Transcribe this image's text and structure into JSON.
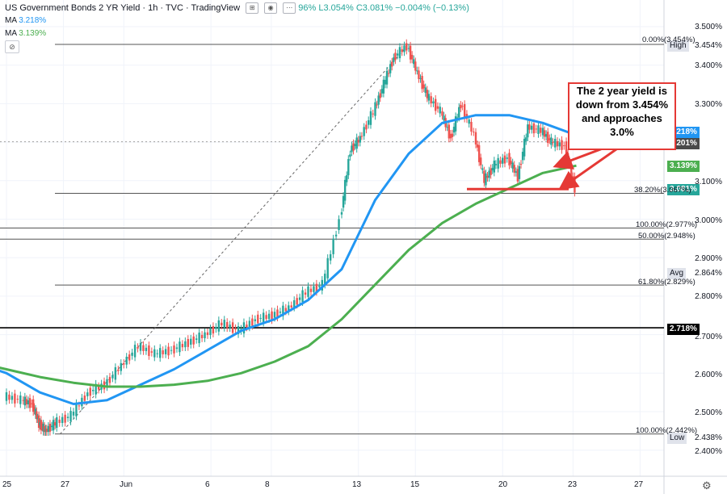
{
  "header": {
    "title": "US Government Bonds 2 YR Yield · 1h · TVC · TradingView",
    "ohlc_text": "96% L3.054% C3.081% −0.004% (−0.13%)",
    "ma1_label": "MA",
    "ma1_value": "3.218%",
    "ma2_label": "MA",
    "ma2_value": "3.139%"
  },
  "colors": {
    "ma_fast": "#2196f3",
    "ma_slow": "#4caf50",
    "up": "#26a69a",
    "down": "#ef5350",
    "annotation": "#e53935"
  },
  "callout": {
    "line1": "The 2 year yield is",
    "line2": "down from 3.454%",
    "line3": "and approaches",
    "line4": "3.0%"
  },
  "yaxis": {
    "ticks": [
      "3.500%",
      "3.400%",
      "3.300%",
      "3.100%",
      "3.000%",
      "2.900%",
      "2.800%",
      "2.700%",
      "2.600%",
      "2.500%",
      "2.400%"
    ]
  },
  "xaxis": {
    "ticks": [
      "25",
      "27",
      "Jun",
      "6",
      "8",
      "13",
      "15",
      "20",
      "23",
      "27"
    ]
  },
  "price_tags": {
    "ma_fast": "3.218%",
    "line_3201": "3.201%",
    "ma_slow": "3.139%",
    "last": "3.081%",
    "hline": "2.718%"
  },
  "side_tags": {
    "high_label": "High",
    "high_value": "3.454%",
    "avg_label": "Avg",
    "avg_value": "2.864%",
    "low_label": "Low",
    "low_value": "2.438%"
  },
  "fib_labels": {
    "f0": "0.00%(3.454%)",
    "f382": "38.20%(3.067%)",
    "f100a": "100.00%(2.977%)",
    "f50": "50.00%(2.948%)",
    "f618": "61.80%(2.829%)",
    "f100b": "100.00%(2.442%)"
  },
  "chart_data": {
    "type": "line",
    "title": "US Government Bonds 2 YR Yield · 1h · TVC · TradingView",
    "ylim": [
      2.38,
      3.54
    ],
    "x": [
      "25",
      "27",
      "Jun",
      "6",
      "8",
      "13",
      "15",
      "20",
      "23",
      "27"
    ],
    "price": [
      [
        0,
        2.54
      ],
      [
        0.5,
        2.53
      ],
      [
        0.8,
        2.52
      ],
      [
        1.0,
        2.47
      ],
      [
        1.2,
        2.45
      ],
      [
        1.5,
        2.47
      ],
      [
        2.0,
        2.49
      ],
      [
        2.5,
        2.55
      ],
      [
        3.0,
        2.57
      ],
      [
        3.5,
        2.62
      ],
      [
        4.0,
        2.67
      ],
      [
        4.5,
        2.65
      ],
      [
        5.0,
        2.66
      ],
      [
        5.5,
        2.68
      ],
      [
        6.0,
        2.7
      ],
      [
        6.5,
        2.73
      ],
      [
        7.0,
        2.71
      ],
      [
        7.5,
        2.74
      ],
      [
        8.0,
        2.75
      ],
      [
        8.5,
        2.77
      ],
      [
        9.0,
        2.81
      ],
      [
        9.5,
        2.83
      ],
      [
        10.0,
        3.0
      ],
      [
        10.3,
        3.18
      ],
      [
        10.6,
        3.21
      ],
      [
        11.0,
        3.28
      ],
      [
        11.3,
        3.35
      ],
      [
        11.6,
        3.42
      ],
      [
        12.0,
        3.45
      ],
      [
        12.3,
        3.38
      ],
      [
        12.6,
        3.32
      ],
      [
        13.0,
        3.28
      ],
      [
        13.3,
        3.21
      ],
      [
        13.6,
        3.3
      ],
      [
        14.0,
        3.22
      ],
      [
        14.3,
        3.1
      ],
      [
        14.6,
        3.14
      ],
      [
        15.0,
        3.16
      ],
      [
        15.3,
        3.11
      ],
      [
        15.6,
        3.24
      ],
      [
        16.0,
        3.23
      ],
      [
        16.3,
        3.2
      ],
      [
        16.7,
        3.19
      ],
      [
        17.0,
        3.081
      ]
    ],
    "series": [
      {
        "name": "MA 3.218%",
        "values": [
          [
            -1,
            2.63
          ],
          [
            0,
            2.6
          ],
          [
            1,
            2.55
          ],
          [
            2,
            2.52
          ],
          [
            3,
            2.53
          ],
          [
            4,
            2.57
          ],
          [
            5,
            2.61
          ],
          [
            6,
            2.66
          ],
          [
            7,
            2.71
          ],
          [
            8,
            2.74
          ],
          [
            9,
            2.79
          ],
          [
            10,
            2.87
          ],
          [
            11,
            3.05
          ],
          [
            12,
            3.17
          ],
          [
            13,
            3.25
          ],
          [
            14,
            3.27
          ],
          [
            15,
            3.27
          ],
          [
            16,
            3.25
          ],
          [
            17,
            3.218
          ]
        ]
      },
      {
        "name": "MA 3.139%",
        "values": [
          [
            -1,
            2.63
          ],
          [
            0,
            2.61
          ],
          [
            1,
            2.59
          ],
          [
            2,
            2.575
          ],
          [
            3,
            2.565
          ],
          [
            4,
            2.565
          ],
          [
            5,
            2.57
          ],
          [
            6,
            2.58
          ],
          [
            7,
            2.6
          ],
          [
            8,
            2.63
          ],
          [
            9,
            2.67
          ],
          [
            10,
            2.74
          ],
          [
            11,
            2.83
          ],
          [
            12,
            2.92
          ],
          [
            13,
            2.99
          ],
          [
            14,
            3.04
          ],
          [
            15,
            3.08
          ],
          [
            16,
            3.12
          ],
          [
            17,
            3.139
          ]
        ]
      }
    ],
    "hlines": [
      {
        "label": "0.00%(3.454%)",
        "y": 3.454
      },
      {
        "label": "38.20%(3.067%)",
        "y": 3.067
      },
      {
        "label": "100.00%(2.977%)",
        "y": 2.977
      },
      {
        "label": "50.00%(2.948%)",
        "y": 2.948
      },
      {
        "label": "61.80%(2.829%)",
        "y": 2.829
      },
      {
        "label": "100.00%(2.442%)",
        "y": 2.442
      },
      {
        "label": "3.201%",
        "y": 3.201
      },
      {
        "label": "2.718%",
        "y": 2.718
      }
    ],
    "support_level": 3.078,
    "legend_position": "top-left",
    "grid": true
  }
}
